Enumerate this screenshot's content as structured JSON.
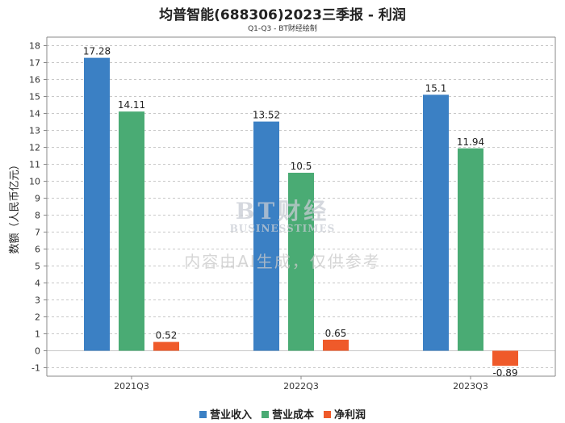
{
  "chart_data": {
    "type": "bar",
    "title": "均普智能(688306)2023三季报 - 利润",
    "subtitle": "Q1-Q3 - BT财经绘制",
    "ylabel": "数额（人民币亿元）",
    "xlabel": "",
    "categories": [
      "2021Q3",
      "2022Q3",
      "2023Q3"
    ],
    "series": [
      {
        "name": "营业收入",
        "color": "#3b80c4",
        "values": [
          17.28,
          13.52,
          15.1
        ],
        "labels": [
          "17.28",
          "13.52",
          "15.1"
        ]
      },
      {
        "name": "营业成本",
        "color": "#4aab74",
        "values": [
          14.11,
          10.5,
          11.94
        ],
        "labels": [
          "14.11",
          "10.5",
          "11.94"
        ]
      },
      {
        "name": "净利润",
        "color": "#ef5a2a",
        "values": [
          0.52,
          0.65,
          -0.89
        ],
        "labels": [
          "0.52",
          "0.65",
          "-0.89"
        ]
      }
    ],
    "ylim": [
      -1.5,
      18.5
    ],
    "yticks": [
      -1,
      0,
      1,
      2,
      3,
      4,
      5,
      6,
      7,
      8,
      9,
      10,
      11,
      12,
      13,
      14,
      15,
      16,
      17,
      18
    ],
    "grid": "horizontal dashed",
    "legend": "bottom-center"
  },
  "watermark": {
    "logo": "BT财经",
    "sub": "BUSINESSTIMES",
    "note": "内容由AI生成，仅供参考"
  }
}
